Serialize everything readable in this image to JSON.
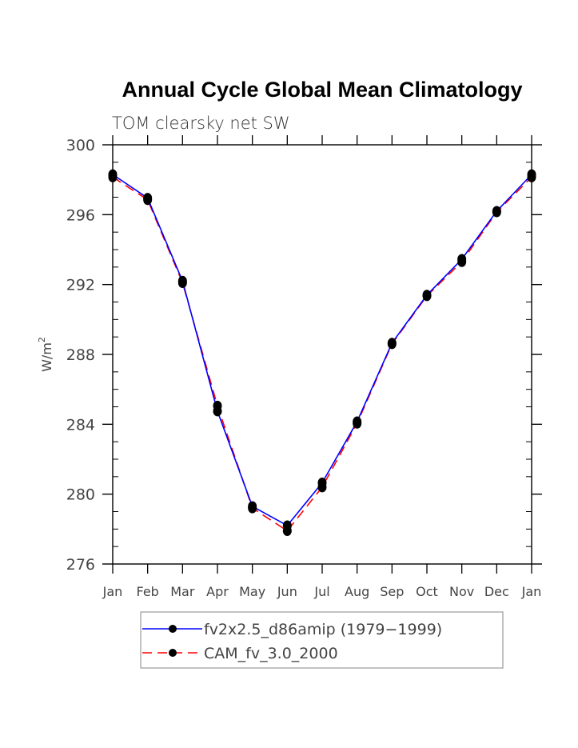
{
  "chart_data": {
    "type": "line",
    "title": "Annual Cycle Global Mean Climatology",
    "subtitle": "TOM clearsky net SW",
    "xlabel": "",
    "ylabel": "W/m",
    "ylabel_superscript": "2",
    "ylim": [
      276,
      300
    ],
    "yticks": [
      276,
      280,
      284,
      288,
      292,
      296,
      300
    ],
    "categories": [
      "Jan",
      "Feb",
      "Mar",
      "Apr",
      "May",
      "Jun",
      "Jul",
      "Aug",
      "Sep",
      "Oct",
      "Nov",
      "Dec",
      "Jan"
    ],
    "grid": false,
    "legend_position": "bottom",
    "series": [
      {
        "name": "fv2x2.5_d86amip (1979−1999)",
        "color": "#0000ff",
        "style": "solid",
        "values": [
          298.3,
          296.95,
          292.2,
          284.75,
          279.3,
          278.2,
          280.65,
          284.15,
          288.65,
          291.4,
          293.45,
          296.2,
          298.3
        ]
      },
      {
        "name": "CAM_fv_3.0_2000",
        "color": "#ff0000",
        "style": "dashed",
        "values": [
          298.15,
          296.85,
          292.1,
          285.05,
          279.2,
          277.9,
          280.4,
          284.05,
          288.6,
          291.35,
          293.3,
          296.15,
          298.15
        ]
      }
    ]
  }
}
